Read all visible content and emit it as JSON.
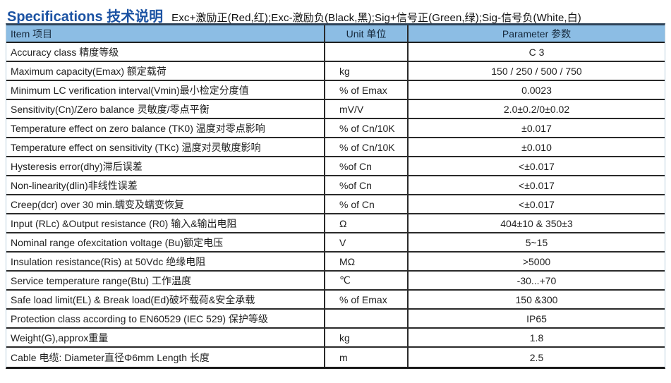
{
  "page": {
    "title": "Specifications 技术说明",
    "subtitle": "Exc+激励正(Red,红);Exc-激励负(Black,黑);Sig+信号正(Green,绿);Sig-信号负(White,白)"
  },
  "table": {
    "columns": {
      "item": "Item 项目",
      "unit": "Unit 单位",
      "parameter": "Parameter 参数"
    },
    "rows": [
      {
        "item": "Accuracy class 精度等级",
        "unit": "",
        "parameter": "C 3"
      },
      {
        "item": "Maximum capacity(Emax) 额定载荷",
        "unit": "kg",
        "parameter": "150 / 250 / 500 / 750"
      },
      {
        "item": "Minimum LC verification interval(Vmin)最小检定分度值",
        "unit": "% of Emax",
        "parameter": "0.0023"
      },
      {
        "item": "Sensitivity(Cn)/Zero balance 灵敏度/零点平衡",
        "unit": "mV/V",
        "parameter": "2.0±0.2/0±0.02"
      },
      {
        "item": "Temperature effect on zero balance (TK0) 温度对零点影响",
        "unit": "% of Cn/10K",
        "parameter": "±0.017"
      },
      {
        "item": "Temperature effect on sensitivity (TKc) 温度对灵敏度影响",
        "unit": "% of Cn/10K",
        "parameter": "±0.010"
      },
      {
        "item": "Hysteresis error(dhy)滞后误差",
        "unit": "%of Cn",
        "parameter": "<±0.017"
      },
      {
        "item": "Non-linearity(dlin)非线性误差",
        "unit": "%of Cn",
        "parameter": "<±0.017"
      },
      {
        "item": "Creep(dcr) over 30 min.蠕变及蠕变恢复",
        "unit": "% of Cn",
        "parameter": "<±0.017"
      },
      {
        "item": "Input (RLc) &Output resistance (R0) 输入&输出电阻",
        "unit": "Ω",
        "parameter": "404±10 & 350±3"
      },
      {
        "item": "Nominal range ofexcitation voltage (Bu)额定电压",
        "unit": "V",
        "parameter": "5~15"
      },
      {
        "item": "Insulation resistance(Ris) at 50Vdc 绝缘电阻",
        "unit": "MΩ",
        "parameter": ">5000"
      },
      {
        "item": "Service temperature range(Btu) 工作温度",
        "unit": "℃",
        "parameter": "-30...+70"
      },
      {
        "item": "Safe load limit(EL) & Break load(Ed)破坏载荷&安全承载",
        "unit": "% of Emax",
        "parameter": "150 &300"
      },
      {
        "item": "Protection class according to EN60529 (IEC 529) 保护等级",
        "unit": "",
        "parameter": "IP65"
      },
      {
        "item": "Weight(G),approx重量",
        "unit": "kg",
        "parameter": "1.8"
      },
      {
        "item": "Cable 电缆: Diameter直径Φ6mm  Length 长度",
        "unit": "m",
        "parameter": "2.5"
      }
    ]
  },
  "colors": {
    "title_blue": "#1c53a3",
    "header_bg": "#8cbde4",
    "line_dark": "#2a2a2a",
    "text": "#1f1f1f"
  }
}
